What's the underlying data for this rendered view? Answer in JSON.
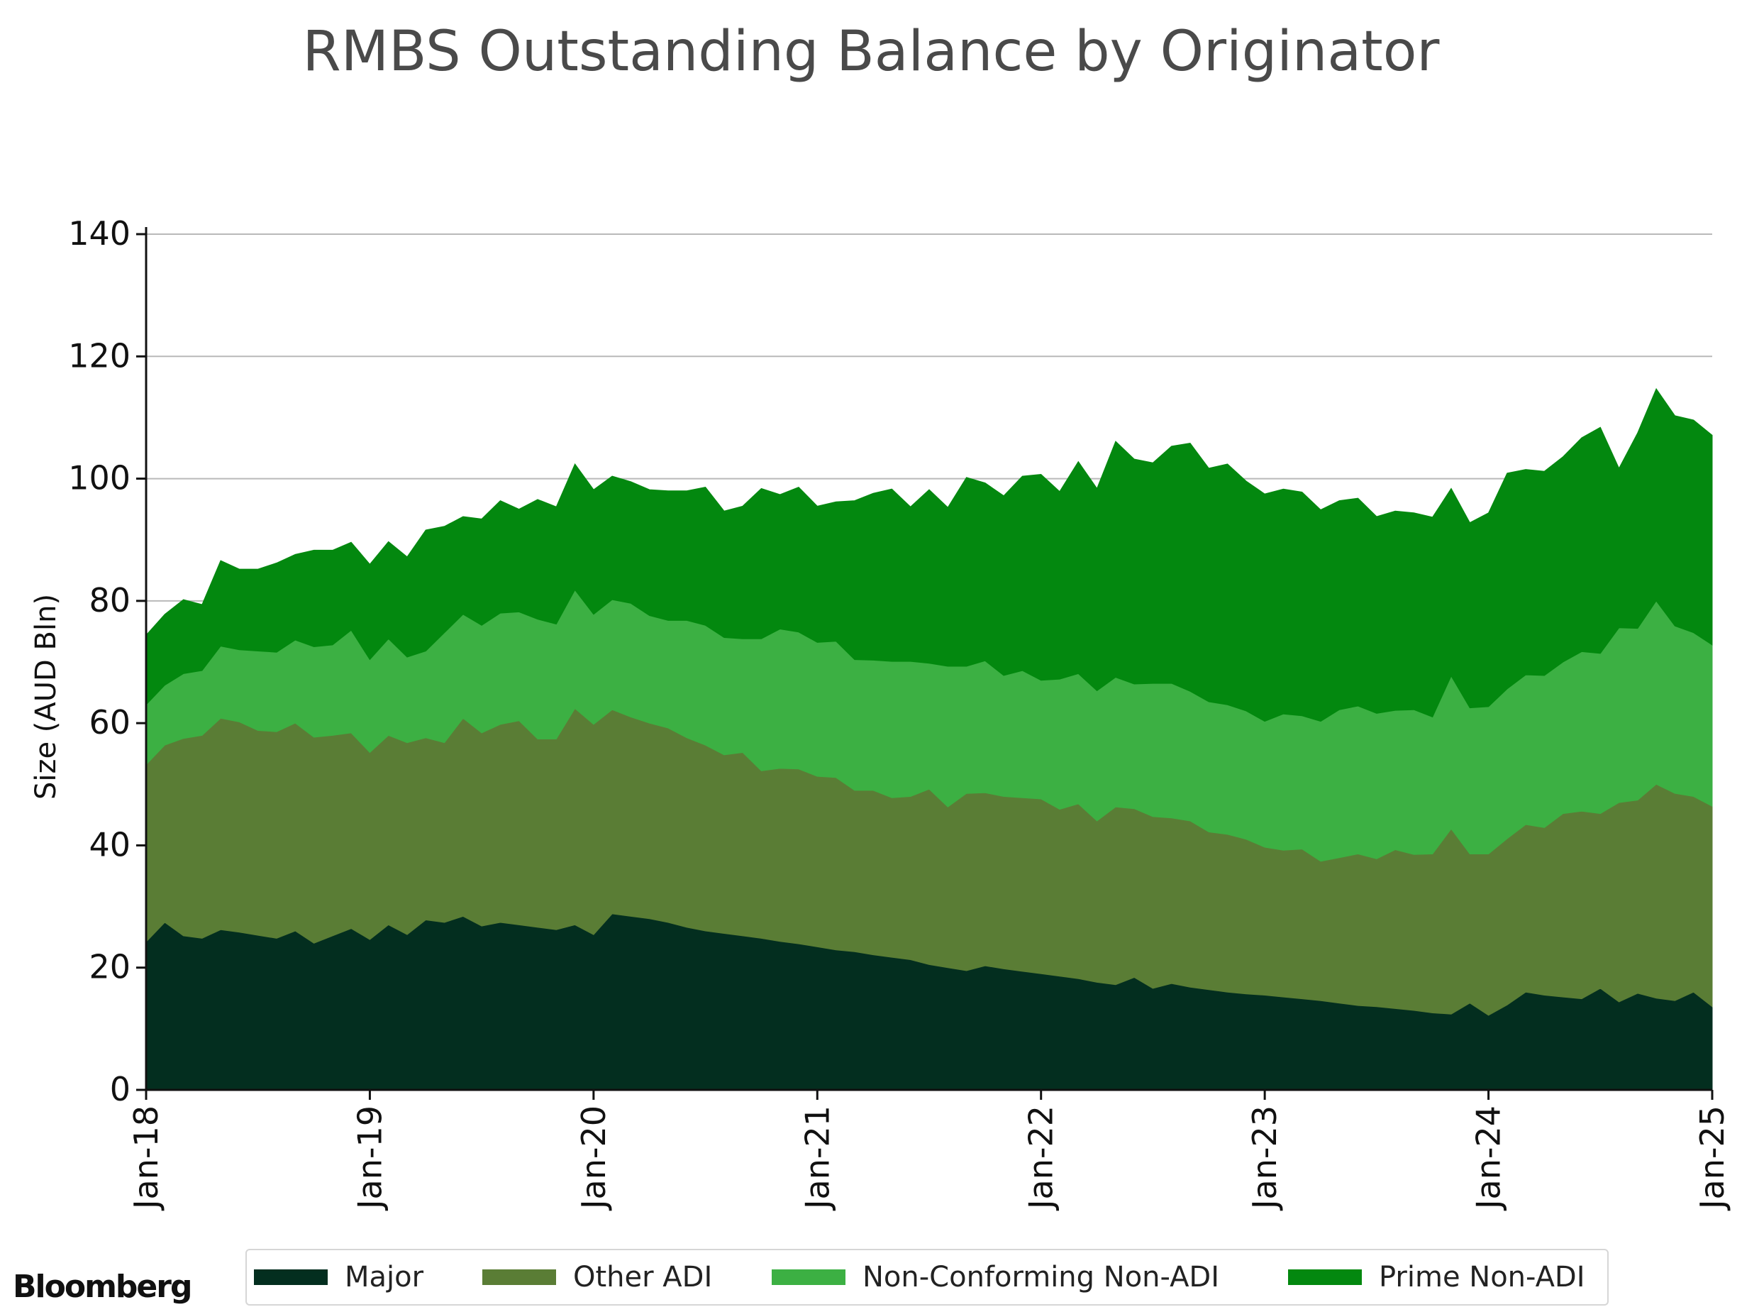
{
  "title": "RMBS Outstanding Balance by Originator",
  "brand": "Bloomberg",
  "chart_data": {
    "type": "area",
    "stacked": true,
    "title": "RMBS Outstanding Balance by Originator",
    "xlabel": "",
    "ylabel": "Size (AUD Bln)",
    "ylim": [
      0,
      140
    ],
    "yticks": [
      0,
      20,
      40,
      60,
      80,
      100,
      120,
      140
    ],
    "xlim": [
      "2018-01",
      "2025-01"
    ],
    "x_tick_labels": [
      "Jan-18",
      "Jan-19",
      "Jan-20",
      "Jan-21",
      "Jan-22",
      "Jan-23",
      "Jan-24",
      "Jan-25"
    ],
    "grid": "horizontal",
    "legend_position": "bottom",
    "x": [
      "2018-01",
      "2018-02",
      "2018-03",
      "2018-04",
      "2018-05",
      "2018-06",
      "2018-07",
      "2018-08",
      "2018-09",
      "2018-10",
      "2018-11",
      "2018-12",
      "2019-01",
      "2019-02",
      "2019-03",
      "2019-04",
      "2019-05",
      "2019-06",
      "2019-07",
      "2019-08",
      "2019-09",
      "2019-10",
      "2019-11",
      "2019-12",
      "2020-01",
      "2020-02",
      "2020-03",
      "2020-04",
      "2020-05",
      "2020-06",
      "2020-07",
      "2020-08",
      "2020-09",
      "2020-10",
      "2020-11",
      "2020-12",
      "2021-01",
      "2021-02",
      "2021-03",
      "2021-04",
      "2021-05",
      "2021-06",
      "2021-07",
      "2021-08",
      "2021-09",
      "2021-10",
      "2021-11",
      "2021-12",
      "2022-01",
      "2022-02",
      "2022-03",
      "2022-04",
      "2022-05",
      "2022-06",
      "2022-07",
      "2022-08",
      "2022-09",
      "2022-10",
      "2022-11",
      "2022-12",
      "2023-01",
      "2023-02",
      "2023-03",
      "2023-04",
      "2023-05",
      "2023-06",
      "2023-07",
      "2023-08",
      "2023-09",
      "2023-10",
      "2023-11",
      "2023-12",
      "2024-01",
      "2024-02",
      "2024-03",
      "2024-04",
      "2024-05",
      "2024-06",
      "2024-07",
      "2024-08",
      "2024-09",
      "2024-10",
      "2024-11",
      "2024-12",
      "2025-01"
    ],
    "series": [
      {
        "name": "Major",
        "color": "#032e1f",
        "values": [
          24.2,
          27.4,
          25.2,
          24.8,
          26.2,
          25.8,
          25.3,
          24.8,
          26.0,
          24.0,
          25.2,
          26.4,
          24.6,
          27.0,
          25.4,
          27.8,
          27.4,
          28.4,
          26.8,
          27.4,
          27.0,
          26.6,
          26.2,
          27.0,
          25.4,
          28.8,
          28.4,
          28.0,
          27.4,
          26.6,
          26.0,
          25.6,
          25.2,
          24.8,
          24.3,
          23.9,
          23.4,
          22.9,
          22.6,
          22.1,
          21.7,
          21.3,
          20.5,
          20.0,
          19.5,
          20.3,
          19.8,
          19.4,
          19.0,
          18.6,
          18.2,
          17.6,
          17.2,
          18.4,
          16.6,
          17.4,
          16.8,
          16.4,
          16.0,
          15.7,
          15.5,
          15.2,
          14.9,
          14.6,
          14.2,
          13.8,
          13.6,
          13.3,
          13.0,
          12.6,
          12.4,
          14.2,
          12.2,
          13.9,
          16.0,
          15.5,
          15.2,
          14.9,
          16.6,
          14.4,
          15.8,
          15.0,
          14.6,
          16.0,
          13.6
        ]
      },
      {
        "name": "Other ADI",
        "color": "#5a7d35",
        "values": [
          29.0,
          29.0,
          32.3,
          33.2,
          34.6,
          34.4,
          33.5,
          33.8,
          34.0,
          33.7,
          32.8,
          32.0,
          30.6,
          31.0,
          31.4,
          29.8,
          29.4,
          32.4,
          31.6,
          32.4,
          33.4,
          30.8,
          31.2,
          35.4,
          34.4,
          33.4,
          32.6,
          32.0,
          31.8,
          31.0,
          30.4,
          29.2,
          30.0,
          27.4,
          28.3,
          28.6,
          27.9,
          28.2,
          26.4,
          26.9,
          26.1,
          26.7,
          28.7,
          26.3,
          29.0,
          28.3,
          28.2,
          28.4,
          28.6,
          27.3,
          28.6,
          26.4,
          29.1,
          27.6,
          28.1,
          27.1,
          27.2,
          25.8,
          25.8,
          25.3,
          24.2,
          24.0,
          24.5,
          22.8,
          23.8,
          24.8,
          24.2,
          26.0,
          25.5,
          26.0,
          30.3,
          24.4,
          26.4,
          27.2,
          27.4,
          27.4,
          30.0,
          30.7,
          28.6,
          32.6,
          31.6,
          35.0,
          33.9,
          32.0,
          32.8
        ]
      },
      {
        "name": "Non-Conforming Non-ADI",
        "color": "#3cb043",
        "values": [
          9.8,
          9.8,
          10.6,
          10.6,
          11.8,
          11.8,
          13.0,
          13.0,
          13.6,
          14.8,
          14.8,
          16.8,
          15.2,
          15.8,
          14.0,
          14.2,
          18.0,
          17.0,
          17.6,
          18.2,
          17.8,
          19.6,
          18.8,
          19.4,
          18.0,
          18.0,
          18.6,
          17.6,
          17.6,
          19.2,
          19.6,
          19.2,
          18.6,
          21.6,
          22.8,
          22.4,
          21.9,
          22.3,
          21.4,
          21.3,
          22.3,
          22.1,
          20.6,
          23.0,
          20.8,
          21.6,
          19.8,
          20.8,
          19.4,
          21.3,
          21.3,
          21.3,
          21.2,
          20.4,
          21.8,
          22.0,
          21.2,
          21.3,
          21.2,
          21.0,
          20.6,
          22.3,
          21.8,
          22.9,
          24.2,
          24.2,
          23.8,
          22.8,
          23.7,
          22.4,
          25.0,
          23.9,
          24.1,
          24.5,
          24.5,
          24.9,
          24.8,
          26.1,
          26.2,
          28.6,
          28.1,
          30.0,
          27.4,
          26.8,
          26.4
        ]
      },
      {
        "name": "Prime Non-ADI",
        "color": "#03880f",
        "values": [
          11.4,
          11.6,
          12.1,
          10.8,
          14.0,
          13.2,
          13.4,
          14.6,
          14.0,
          15.8,
          15.5,
          14.4,
          15.6,
          15.9,
          16.4,
          19.8,
          17.4,
          16.0,
          17.4,
          18.4,
          16.8,
          19.6,
          19.2,
          20.6,
          20.4,
          20.2,
          19.9,
          20.6,
          21.2,
          21.2,
          22.6,
          20.7,
          21.7,
          24.6,
          22.0,
          23.7,
          22.3,
          22.8,
          26.0,
          27.3,
          28.2,
          25.3,
          28.4,
          26.0,
          30.9,
          29.1,
          29.4,
          31.8,
          33.7,
          30.7,
          34.7,
          33.1,
          38.6,
          36.8,
          36.1,
          38.8,
          40.6,
          38.2,
          39.4,
          37.6,
          37.2,
          36.8,
          36.6,
          34.6,
          34.2,
          34.0,
          32.2,
          32.6,
          32.2,
          32.7,
          30.7,
          30.3,
          31.7,
          35.3,
          33.6,
          33.4,
          33.6,
          35.0,
          37.0,
          26.1,
          32.0,
          34.7,
          34.4,
          34.8,
          34.3
        ]
      }
    ]
  }
}
